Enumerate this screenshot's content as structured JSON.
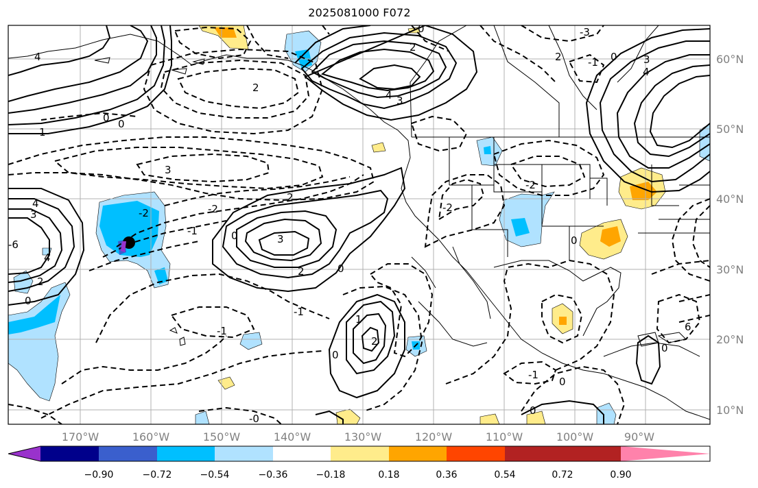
{
  "title": "2025081000 F072",
  "map": {
    "lon_labels": [
      "170°W",
      "160°W",
      "150°W",
      "140°W",
      "130°W",
      "120°W",
      "110°W",
      "100°W",
      "90°W"
    ],
    "lat_labels": [
      "60°N",
      "50°N",
      "40°N",
      "30°N",
      "20°N",
      "10°N"
    ],
    "marker": "black-dot"
  },
  "colorbar": {
    "ticks": [
      "−0.90",
      "−0.72",
      "−0.54",
      "−0.36",
      "−0.18",
      "0.18",
      "0.36",
      "0.54",
      "0.72",
      "0.90"
    ],
    "colors": [
      "#9932cc",
      "#00008b",
      "#3a5fcd",
      "#00bfff",
      "#b0e2ff",
      "#ffffff",
      "#ffec8b",
      "#ffa500",
      "#ff4500",
      "#b22222",
      "#ff82ab"
    ]
  },
  "contour_labels": {
    "l1": "4",
    "l2": "1",
    "l3": "0",
    "l4": "0",
    "l5": "2",
    "l6": "4",
    "l7": "3",
    "l8": "2",
    "l9": "0",
    "l10": "3",
    "l11": "2",
    "l12": "-2",
    "l13": "-1",
    "l14": "-2",
    "l15": "3",
    "l16": "0",
    "l17": "2",
    "l18": "-1",
    "l19": "0",
    "l20": "1",
    "l21": "2",
    "l22": "-1",
    "l23": "0",
    "l24": "-1",
    "l25": "0",
    "l26": "2",
    "l27": "-2",
    "l28": "-2",
    "l29": "3",
    "l30": "4",
    "l31": "-0",
    "l32": "-3",
    "l33": "4",
    "l34": "6",
    "l35": "3",
    "l36": "4",
    "l37": "2",
    "l38": "0",
    "l39": "-6",
    "l40": "-1",
    "l41": "0",
    "l42": "0",
    "l43": "0",
    "l44": "0"
  }
}
